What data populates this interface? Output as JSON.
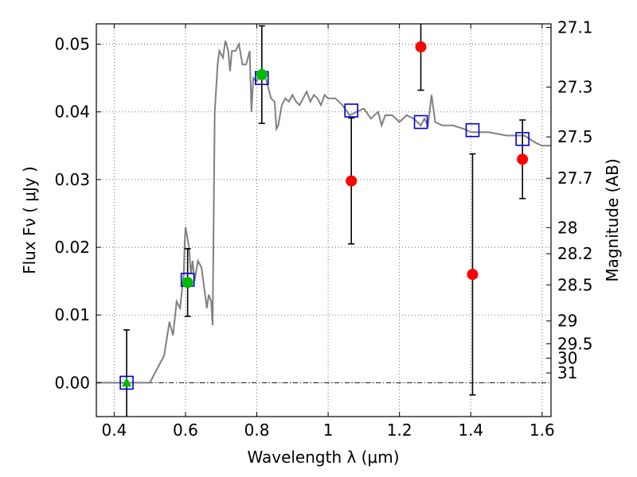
{
  "chart_data": {
    "type": "scatter",
    "title": "",
    "xlabel": "Wavelength  λ (μm)",
    "ylabel": "Flux  Fν  ( μJy )",
    "ylabel_right": "Magnitude (AB)",
    "xlim": [
      0.35,
      1.625
    ],
    "ylim": [
      -0.005,
      0.053
    ],
    "grid": true,
    "xticks": [
      0.4,
      0.6,
      0.8,
      1.0,
      1.2,
      1.4,
      1.6
    ],
    "xtick_labels": [
      "0.4",
      "0.6",
      "0.8",
      "1",
      "1.2",
      "1.4",
      "1.6"
    ],
    "yticks": [
      0.0,
      0.01,
      0.02,
      0.03,
      0.04,
      0.05
    ],
    "ytick_labels": [
      "0.00",
      "0.01",
      "0.02",
      "0.03",
      "0.04",
      "0.05"
    ],
    "right_ticks": [
      "27.1",
      "27.3",
      "27.5",
      "27.7",
      "28",
      "28.2",
      "28.5",
      "29",
      "29.5",
      "30",
      "31"
    ],
    "zero_line": 0.0,
    "colors": {
      "model": "#808080",
      "model_photometry": "#0000cc",
      "detections": "#00bb00",
      "upper_points": "#ff0000",
      "errorbar": "#000000"
    },
    "series": [
      {
        "kind": "model-spectrum",
        "points": [
          [
            0.35,
            0.0
          ],
          [
            0.5,
            0.0
          ],
          [
            0.52,
            0.002
          ],
          [
            0.54,
            0.004
          ],
          [
            0.555,
            0.009
          ],
          [
            0.565,
            0.007
          ],
          [
            0.575,
            0.012
          ],
          [
            0.585,
            0.011
          ],
          [
            0.595,
            0.016
          ],
          [
            0.598,
            0.021
          ],
          [
            0.6,
            0.023
          ],
          [
            0.61,
            0.02
          ],
          [
            0.615,
            0.016
          ],
          [
            0.62,
            0.018
          ],
          [
            0.625,
            0.015
          ],
          [
            0.635,
            0.018
          ],
          [
            0.645,
            0.017
          ],
          [
            0.655,
            0.013
          ],
          [
            0.66,
            0.011
          ],
          [
            0.665,
            0.013
          ],
          [
            0.672,
            0.012
          ],
          [
            0.676,
            0.0085
          ],
          [
            0.682,
            0.04
          ],
          [
            0.69,
            0.047
          ],
          [
            0.695,
            0.049
          ],
          [
            0.705,
            0.048
          ],
          [
            0.712,
            0.0505
          ],
          [
            0.72,
            0.049
          ],
          [
            0.725,
            0.046
          ],
          [
            0.73,
            0.049
          ],
          [
            0.74,
            0.049
          ],
          [
            0.75,
            0.05
          ],
          [
            0.76,
            0.047
          ],
          [
            0.77,
            0.047
          ],
          [
            0.78,
            0.049
          ],
          [
            0.785,
            0.04
          ],
          [
            0.79,
            0.045
          ],
          [
            0.8,
            0.0445
          ],
          [
            0.81,
            0.046
          ],
          [
            0.82,
            0.046
          ],
          [
            0.83,
            0.044
          ],
          [
            0.84,
            0.042
          ],
          [
            0.85,
            0.0415
          ],
          [
            0.855,
            0.0375
          ],
          [
            0.86,
            0.038
          ],
          [
            0.87,
            0.041
          ],
          [
            0.88,
            0.042
          ],
          [
            0.89,
            0.0415
          ],
          [
            0.9,
            0.0425
          ],
          [
            0.91,
            0.0415
          ],
          [
            0.92,
            0.041
          ],
          [
            0.93,
            0.042
          ],
          [
            0.94,
            0.043
          ],
          [
            0.95,
            0.0415
          ],
          [
            0.96,
            0.0425
          ],
          [
            0.97,
            0.042
          ],
          [
            0.98,
            0.041
          ],
          [
            0.99,
            0.0425
          ],
          [
            1.0,
            0.042
          ],
          [
            1.02,
            0.042
          ],
          [
            1.04,
            0.041
          ],
          [
            1.06,
            0.0395
          ],
          [
            1.08,
            0.04
          ],
          [
            1.1,
            0.0405
          ],
          [
            1.12,
            0.039
          ],
          [
            1.14,
            0.04
          ],
          [
            1.15,
            0.038
          ],
          [
            1.16,
            0.0395
          ],
          [
            1.18,
            0.0395
          ],
          [
            1.2,
            0.0385
          ],
          [
            1.22,
            0.0395
          ],
          [
            1.24,
            0.039
          ],
          [
            1.26,
            0.038
          ],
          [
            1.27,
            0.039
          ],
          [
            1.28,
            0.038
          ],
          [
            1.29,
            0.0425
          ],
          [
            1.3,
            0.0385
          ],
          [
            1.32,
            0.038
          ],
          [
            1.35,
            0.038
          ],
          [
            1.38,
            0.0375
          ],
          [
            1.4,
            0.037
          ],
          [
            1.45,
            0.037
          ],
          [
            1.5,
            0.0365
          ],
          [
            1.55,
            0.0365
          ],
          [
            1.58,
            0.0355
          ],
          [
            1.6,
            0.035
          ],
          [
            1.625,
            0.035
          ]
        ]
      },
      {
        "kind": "model-photometry",
        "marker": "open-square",
        "points": [
          [
            0.435,
            0.0
          ],
          [
            0.606,
            0.0152
          ],
          [
            0.814,
            0.045
          ],
          [
            1.065,
            0.0402
          ],
          [
            1.26,
            0.0385
          ],
          [
            1.405,
            0.0373
          ],
          [
            1.545,
            0.036
          ]
        ]
      },
      {
        "kind": "detections",
        "marker": "filled-circle",
        "points": [
          [
            0.606,
            0.0148,
            0.005
          ],
          [
            0.814,
            0.0455,
            0.0072
          ]
        ]
      },
      {
        "kind": "detections",
        "marker": "filled-triangle",
        "points": [
          [
            0.435,
            0.0,
            0.0078
          ]
        ]
      },
      {
        "kind": "other-measurements",
        "marker": "filled-circle",
        "points": [
          [
            1.065,
            0.0298,
            0.0093
          ],
          [
            1.26,
            0.0496,
            0.0064
          ],
          [
            1.405,
            0.016,
            0.0178
          ],
          [
            1.545,
            0.033,
            0.0058
          ]
        ]
      }
    ]
  }
}
